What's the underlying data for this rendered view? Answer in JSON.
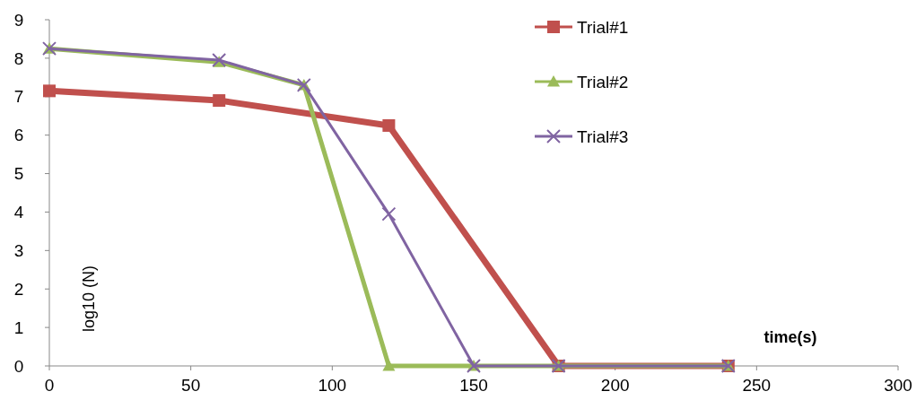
{
  "chart_data": {
    "type": "line",
    "xlabel": "time(s)",
    "ylabel": "log10 (N)",
    "xlim": [
      0,
      300
    ],
    "xticks": [
      0,
      50,
      100,
      150,
      200,
      250,
      300
    ],
    "ylim": [
      0,
      9
    ],
    "yticks": [
      0,
      1,
      2,
      3,
      4,
      5,
      6,
      7,
      8,
      9
    ],
    "legend": "top right",
    "grid": false,
    "series": [
      {
        "name": "Trial#1",
        "color": "#c0504d",
        "marker": "square",
        "x": [
          0,
          60,
          120,
          180,
          240
        ],
        "values": [
          7.15,
          6.9,
          6.25,
          0,
          0
        ]
      },
      {
        "name": "Trial#2",
        "color": "#9bbb59",
        "marker": "triangle",
        "x": [
          0,
          60,
          90,
          120,
          150,
          180,
          240
        ],
        "values": [
          8.25,
          7.9,
          7.3,
          0,
          0,
          0,
          0
        ]
      },
      {
        "name": "Trial#3",
        "color": "#8064a2",
        "marker": "cross",
        "x": [
          0,
          60,
          90,
          120,
          150,
          180,
          240
        ],
        "values": [
          8.25,
          7.95,
          7.3,
          3.95,
          0,
          0,
          0
        ]
      }
    ]
  }
}
